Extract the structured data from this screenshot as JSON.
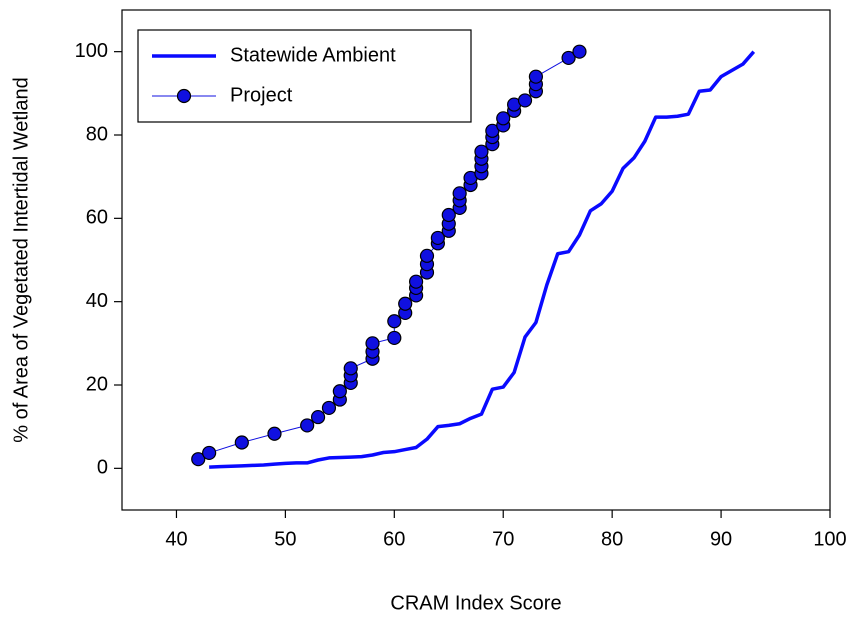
{
  "chart_data": {
    "type": "line",
    "x_label": "CRAM Index Score",
    "y_label": "% of Area of Vegetated Intertidal Wetland",
    "xlim": [
      35,
      100
    ],
    "xticks": [
      40,
      50,
      60,
      70,
      80,
      90,
      100
    ],
    "ylim": [
      -10,
      110
    ],
    "yticks": [
      0,
      20,
      40,
      60,
      80,
      100
    ],
    "grid": false,
    "legend": "upper left",
    "series": [
      {
        "name": "Statewide Ambient",
        "color": "#0a0aff",
        "linewidth": 3.5,
        "marker": "none",
        "x": [
          43,
          44,
          45,
          46,
          47,
          48,
          49,
          50,
          51,
          52,
          53,
          54,
          55,
          56,
          57,
          58,
          59,
          60,
          61,
          62,
          63,
          64,
          65,
          66,
          67,
          68,
          69,
          70,
          71,
          72,
          73,
          74,
          75,
          76,
          77,
          78,
          79,
          80,
          81,
          82,
          83,
          84,
          85,
          86,
          87,
          88,
          89,
          90,
          91,
          92,
          93
        ],
        "values": [
          0.3,
          0.4,
          0.5,
          0.6,
          0.7,
          0.8,
          1,
          1.2,
          1.3,
          1.3,
          2,
          2.5,
          2.6,
          2.7,
          2.8,
          3.2,
          3.8,
          4,
          4.5,
          5,
          7,
          10,
          10.3,
          10.7,
          12,
          13,
          19,
          19.5,
          23,
          31.5,
          35,
          44,
          51.5,
          52,
          56,
          61.8,
          63.5,
          66.5,
          72,
          74.5,
          78.5,
          84.3,
          84.3,
          84.5,
          85,
          90.5,
          90.8,
          94,
          95.5,
          97,
          100
        ]
      },
      {
        "name": "Project",
        "color": "#1010e0",
        "linewidth": 1,
        "marker": "circle",
        "x": [
          42,
          43,
          46,
          49,
          52,
          53,
          54,
          55,
          55,
          56,
          56,
          56,
          58,
          58,
          58,
          60,
          60,
          61,
          61,
          62,
          62,
          62,
          63,
          63,
          63,
          64,
          64,
          65,
          65,
          65,
          66,
          66,
          66,
          67,
          67,
          68,
          68,
          68,
          68,
          69,
          69,
          69,
          70,
          70,
          71,
          71,
          72,
          73,
          73,
          73,
          76,
          77
        ],
        "values": [
          2.2,
          3.7,
          6.2,
          8.3,
          10.3,
          12.3,
          14.5,
          16.5,
          18.5,
          20.5,
          22.3,
          24,
          26.3,
          28,
          30,
          31.3,
          35.3,
          37.3,
          39.5,
          41.5,
          43.3,
          44.8,
          47,
          49,
          51,
          54,
          55.3,
          57,
          58.7,
          60.8,
          62.5,
          64.3,
          66,
          68,
          69.7,
          70.8,
          72.5,
          74.3,
          76,
          77.8,
          79.5,
          81,
          82.3,
          84,
          85.8,
          87.3,
          88.3,
          90.5,
          92.2,
          94,
          98.5,
          100
        ]
      }
    ]
  }
}
